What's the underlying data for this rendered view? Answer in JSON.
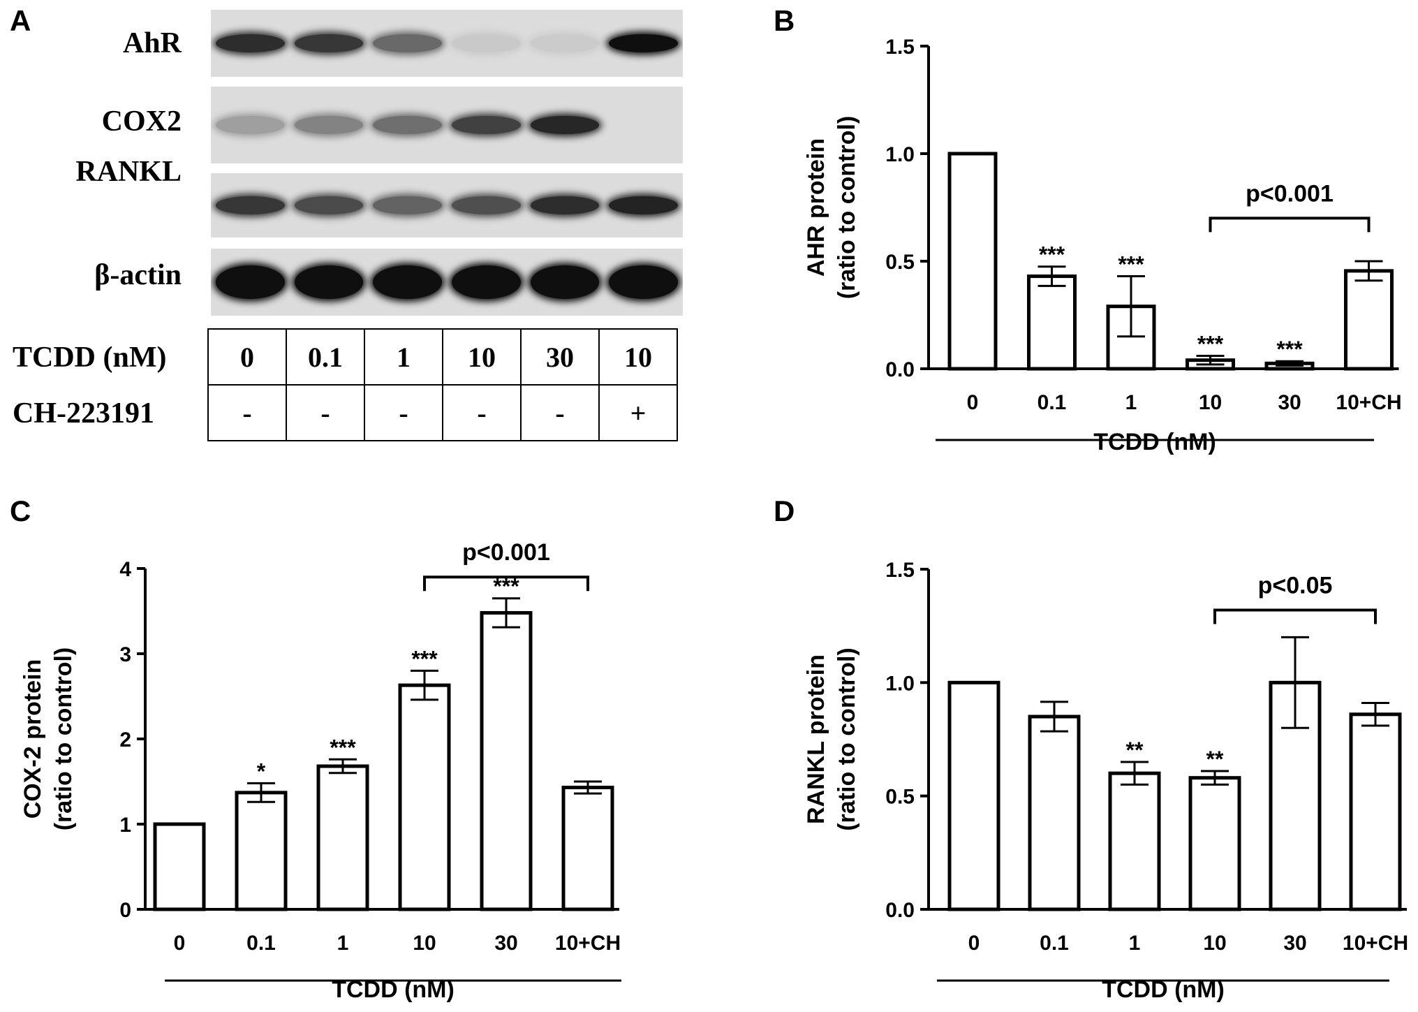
{
  "panels": {
    "a": "A",
    "b": "B",
    "c": "C",
    "d": "D"
  },
  "blot": {
    "rows": [
      {
        "label": "AhR",
        "intensities": [
          0.85,
          0.8,
          0.55,
          0.07,
          0.06,
          1.0
        ]
      },
      {
        "label": "COX2",
        "intensities": [
          0.28,
          0.42,
          0.52,
          0.75,
          0.88,
          0.0
        ]
      },
      {
        "label": "RANKL",
        "intensities": [
          0.8,
          0.7,
          0.58,
          0.68,
          0.85,
          0.9
        ]
      },
      {
        "label": "β-actin",
        "intensities": [
          1.0,
          1.0,
          1.0,
          1.0,
          1.0,
          1.0
        ]
      }
    ],
    "table": {
      "tcdd_label": "TCDD (nM)",
      "ch_label": "CH-223191",
      "tcdd_values": [
        "0",
        "0.1",
        "1",
        "10",
        "30",
        "10"
      ],
      "ch_values": [
        "-",
        "-",
        "-",
        "-",
        "-",
        "+"
      ]
    }
  },
  "chart_data": [
    {
      "panel": "B",
      "type": "bar",
      "ylabel": "AHR protein\n(ratio to control)",
      "xlabel": "TCDD (nM)",
      "categories": [
        "0",
        "0.1",
        "1",
        "10",
        "30",
        "10+CH"
      ],
      "values": [
        1.0,
        0.43,
        0.29,
        0.04,
        0.025,
        0.455
      ],
      "errors": [
        0.0,
        0.045,
        0.14,
        0.02,
        0.01,
        0.045
      ],
      "annotations": [
        "",
        "***",
        "***",
        "***",
        "***",
        ""
      ],
      "ylim": [
        0,
        1.5
      ],
      "yticks": [
        "0.0",
        "0.5",
        "1.0",
        "1.5"
      ],
      "ytick_values": [
        0,
        0.5,
        1.0,
        1.5
      ],
      "bracket": {
        "from": 3,
        "to": 5,
        "label": "p<0.001",
        "level": 0.7
      }
    },
    {
      "panel": "C",
      "type": "bar",
      "ylabel": "COX-2 protein\n(ratio to control)",
      "xlabel": "TCDD (nM)",
      "categories": [
        "0",
        "0.1",
        "1",
        "10",
        "30",
        "10+CH"
      ],
      "values": [
        1.0,
        1.37,
        1.68,
        2.63,
        3.48,
        1.43
      ],
      "errors": [
        0.0,
        0.11,
        0.08,
        0.17,
        0.17,
        0.07
      ],
      "annotations": [
        "",
        "*",
        "***",
        "***",
        "***",
        ""
      ],
      "ylim": [
        0,
        4
      ],
      "yticks": [
        "0",
        "1",
        "2",
        "3",
        "4"
      ],
      "ytick_values": [
        0,
        1,
        2,
        3,
        4
      ],
      "bracket": {
        "from": 3,
        "to": 5,
        "label": "p<0.001",
        "level": 3.9
      }
    },
    {
      "panel": "D",
      "type": "bar",
      "ylabel": "RANKL protein\n(ratio to control)",
      "xlabel": "TCDD (nM)",
      "categories": [
        "0",
        "0.1",
        "1",
        "10",
        "30",
        "10+CH"
      ],
      "values": [
        1.0,
        0.85,
        0.6,
        0.58,
        1.0,
        0.86
      ],
      "errors": [
        0.0,
        0.065,
        0.05,
        0.03,
        0.2,
        0.05
      ],
      "annotations": [
        "",
        "",
        "**",
        "**",
        "",
        ""
      ],
      "ylim": [
        0,
        1.5
      ],
      "yticks": [
        "0.0",
        "0.5",
        "1.0",
        "1.5"
      ],
      "ytick_values": [
        0,
        0.5,
        1.0,
        1.5
      ],
      "bracket": {
        "from": 3,
        "to": 5,
        "label": "p<0.05",
        "level": 1.32
      }
    }
  ]
}
